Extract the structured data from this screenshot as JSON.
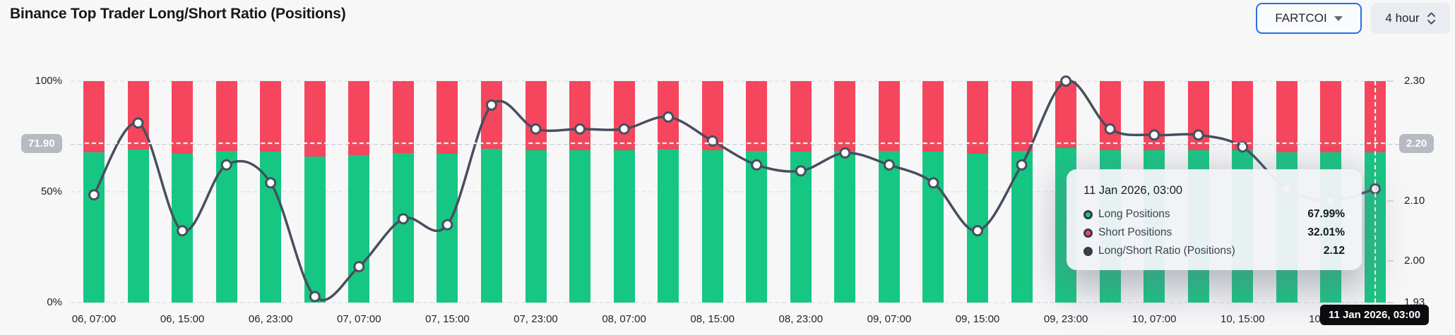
{
  "header": {
    "title": "Binance Top Trader Long/Short Ratio (Positions)",
    "symbol_select": {
      "value": "FARTCOI",
      "icon": "chevron-down-icon"
    },
    "interval_select": {
      "value": "4 hour",
      "icon": "up-down-chevrons-icon"
    }
  },
  "colors": {
    "long_green": "#16c784",
    "short_red": "#f6465d",
    "ratio_line": "#474f5e",
    "marker_fill": "#ffffff",
    "accent_blue": "#2a6de9",
    "badge_gray": "#b6bac1",
    "crosshair_badge_black": "#0b0c0e"
  },
  "crosshair": {
    "y_left_badge": "71.90",
    "y_right_badge": "2.20",
    "y_value_pct": 71.9,
    "x_badge": "11 Jan 2026, 03:00",
    "bar_index": 29
  },
  "tooltip": {
    "date": "11 Jan 2026, 03:00",
    "rows": [
      {
        "icon": "long-dot-icon",
        "label": "Long Positions",
        "value": "67.99%"
      },
      {
        "icon": "short-dot-icon",
        "label": "Short Positions",
        "value": "32.01%"
      },
      {
        "icon": "ratio-dot-icon",
        "label": "Long/Short Ratio (Positions)",
        "value": "2.12"
      }
    ]
  },
  "chart_data": {
    "type": "bar+line",
    "title": "Binance Top Trader Long/Short Ratio (Positions)",
    "bar_mode": "stacked-percent",
    "left_axis": {
      "ticks": [
        "100%",
        "50%",
        "0%"
      ],
      "tick_values": [
        100,
        50,
        0
      ],
      "range": [
        0,
        100
      ]
    },
    "right_axis": {
      "ticks": [
        "2.30",
        "2.10",
        "2.00",
        "1.93"
      ],
      "tick_values": [
        2.3,
        2.1,
        2.0,
        1.93
      ],
      "range": [
        1.93,
        2.3
      ]
    },
    "x_ticks": [
      {
        "i": 0,
        "label": "06, 07:00"
      },
      {
        "i": 2,
        "label": "06, 15:00"
      },
      {
        "i": 4,
        "label": "06, 23:00"
      },
      {
        "i": 6,
        "label": "07, 07:00"
      },
      {
        "i": 8,
        "label": "07, 15:00"
      },
      {
        "i": 10,
        "label": "07, 23:00"
      },
      {
        "i": 12,
        "label": "08, 07:00"
      },
      {
        "i": 14,
        "label": "08, 15:00"
      },
      {
        "i": 16,
        "label": "08, 23:00"
      },
      {
        "i": 18,
        "label": "09, 07:00"
      },
      {
        "i": 20,
        "label": "09, 15:00"
      },
      {
        "i": 22,
        "label": "09, 23:00"
      },
      {
        "i": 24,
        "label": "10, 07:00"
      },
      {
        "i": 26,
        "label": "10, 15:00"
      },
      {
        "i": 28,
        "label": "10, 23:00"
      }
    ],
    "series": [
      {
        "name": "Long Positions",
        "unit": "%",
        "color": "#16c784",
        "values": [
          67.85,
          69.04,
          67.21,
          68.35,
          68.05,
          65.99,
          66.56,
          67.43,
          67.32,
          69.33,
          68.94,
          68.94,
          68.94,
          69.14,
          68.75,
          68.35,
          68.25,
          68.55,
          68.35,
          68.05,
          67.21,
          68.35,
          69.7,
          68.94,
          68.85,
          68.85,
          68.65,
          67.95,
          67.74,
          67.99
        ]
      },
      {
        "name": "Short Positions",
        "unit": "%",
        "color": "#f6465d",
        "values": [
          32.15,
          30.96,
          32.79,
          31.65,
          31.95,
          34.01,
          33.44,
          32.57,
          32.68,
          30.67,
          31.06,
          31.06,
          31.06,
          30.86,
          31.25,
          31.65,
          31.75,
          31.45,
          31.65,
          31.95,
          32.79,
          31.65,
          30.3,
          31.06,
          31.15,
          31.15,
          31.35,
          32.05,
          32.26,
          32.01
        ]
      },
      {
        "name": "Long/Short Ratio (Positions)",
        "unit": "",
        "color": "#474f5e",
        "values": [
          2.11,
          2.23,
          2.05,
          2.16,
          2.13,
          1.94,
          1.99,
          2.07,
          2.06,
          2.26,
          2.22,
          2.22,
          2.22,
          2.24,
          2.2,
          2.16,
          2.15,
          2.18,
          2.16,
          2.13,
          2.05,
          2.16,
          2.3,
          2.22,
          2.21,
          2.21,
          2.19,
          2.12,
          2.1,
          2.12
        ]
      }
    ]
  }
}
